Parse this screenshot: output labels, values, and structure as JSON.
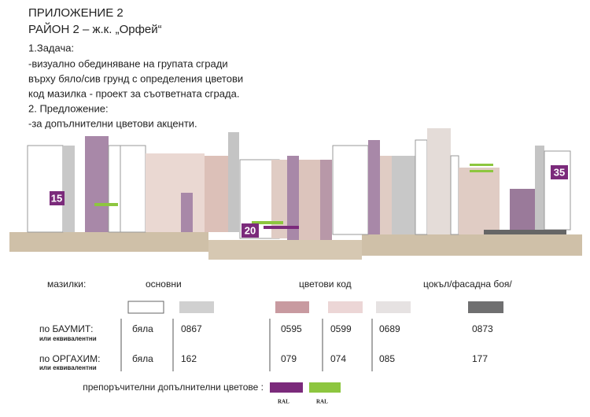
{
  "header": {
    "title": "ПРИЛОЖЕНИЕ 2",
    "subtitle": "РАЙОН 2 – ж.к. „Орфей“"
  },
  "notes": [
    "1.Задача:",
    "-визуално обединяване на групата сгради",
    "върху бяло/сив грунд с определения цветови",
    "код  мазилка - проект за съответната сграда.",
    "2. Предложение:",
    "-за  допълнителни цветови акценти."
  ],
  "markers": [
    "15",
    "20",
    "35"
  ],
  "legend": {
    "headings": [
      "мазилки:",
      "основни",
      "цветови код",
      "цокъл/фасадна боя/"
    ],
    "rows": [
      {
        "name": "по БАУМИТ:",
        "note": "или еквивалентни",
        "codes": [
          "бяла",
          "0867",
          "0595",
          "0599",
          "0689",
          "0873"
        ]
      },
      {
        "name": "по ОРГАХИМ:",
        "note": "или еквивалентни",
        "codes": [
          "бяла",
          "162",
          "079",
          "074",
          "085",
          "177"
        ]
      }
    ],
    "extra": {
      "label": "препоръчителни допълнителни цветове :",
      "ral": [
        "RAL",
        "RAL"
      ]
    }
  }
}
